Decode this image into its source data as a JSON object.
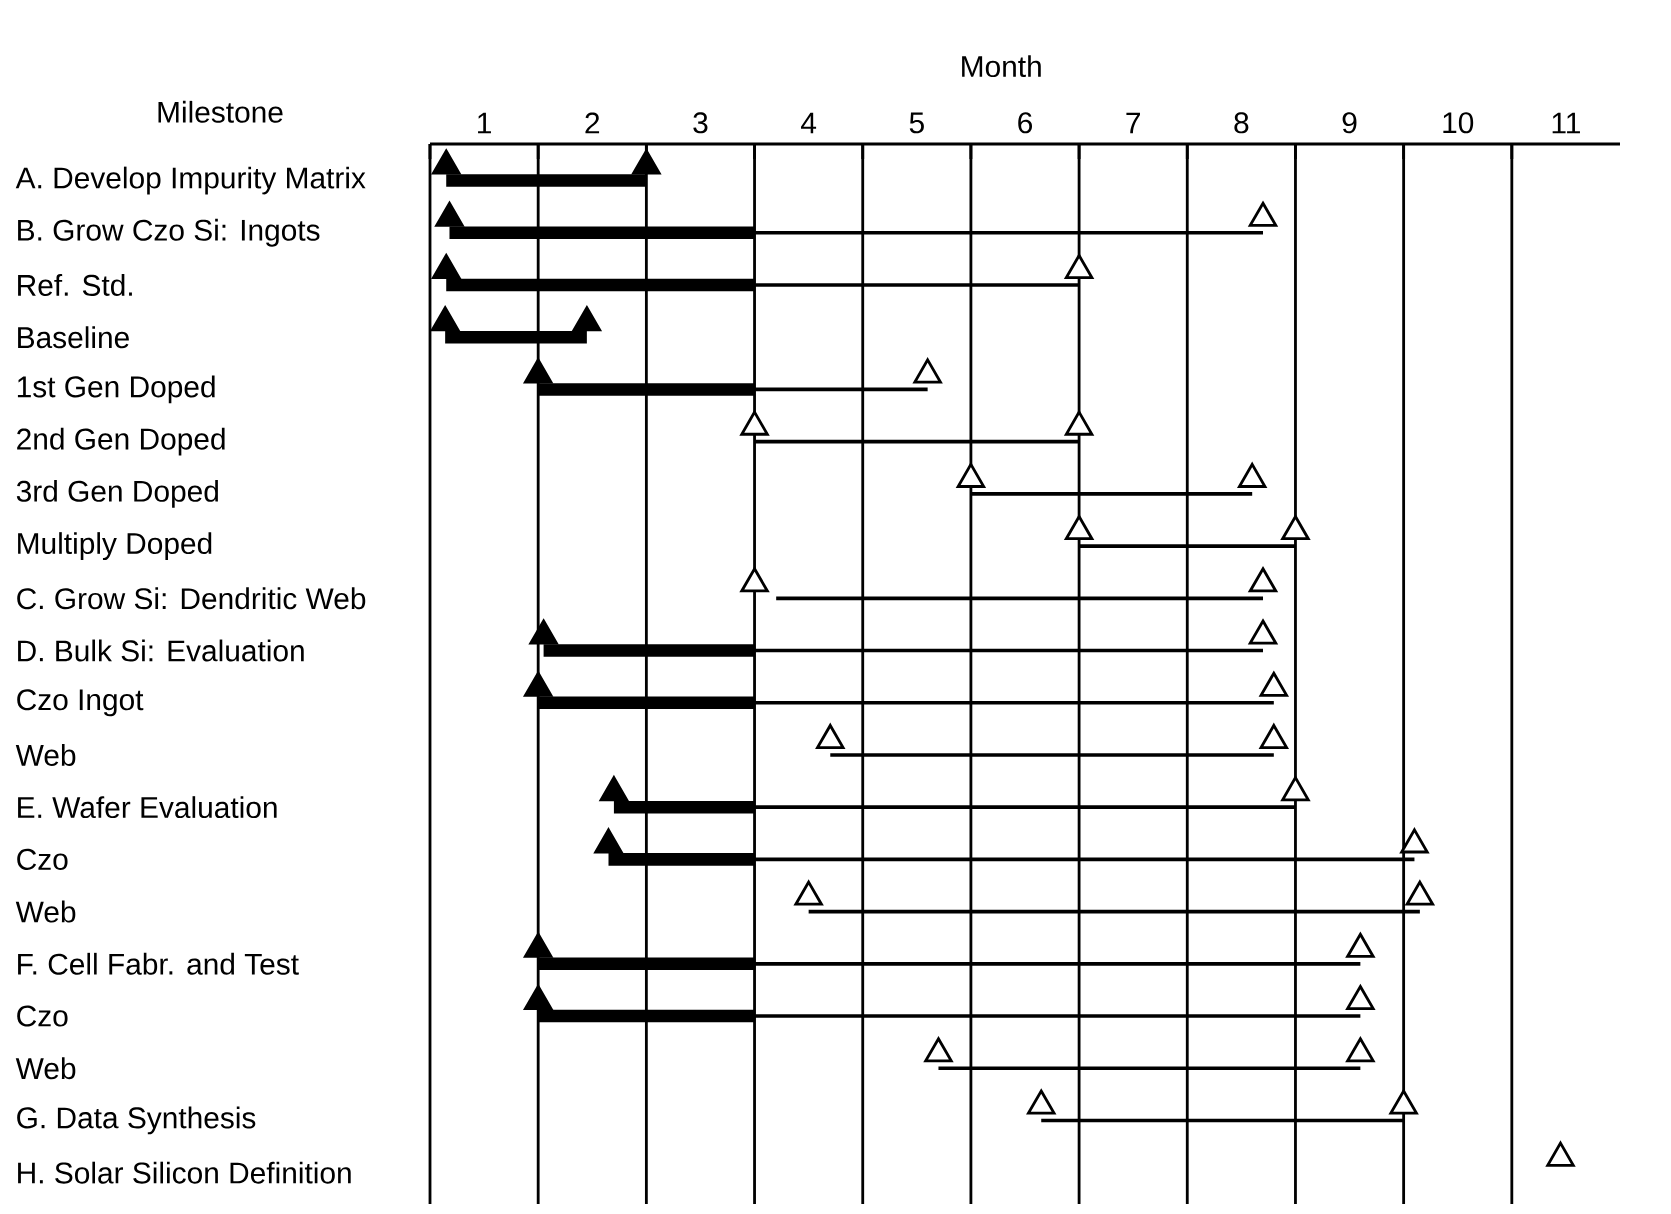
{
  "chart_data": {
    "type": "bar",
    "orientation": "horizontal",
    "xlabel": "Month",
    "ylabel": "Milestone",
    "categories": [
      "A. Develop Impurity Matrix",
      "B. Grow Czo Si: Ingots",
      "Ref. Std.",
      "Baseline",
      "1st Gen Doped",
      "2nd Gen Doped",
      "3rd Gen Doped",
      "Multiply Doped",
      "C. Grow Si: Dendritic Web",
      "D. Bulk Si: Evaluation",
      "Czo Ingot",
      "Web",
      "E. Wafer Evaluation",
      "Czo",
      "Web",
      "F. Cell Fabr. and Test",
      "Czo",
      "Web",
      "G. Data Synthesis",
      "H. Solar Silicon Definition"
    ],
    "series": [
      {
        "color": "#000000",
        "base": [
          0.15,
          0.18,
          0.15,
          0.14,
          1.0,
          null,
          null,
          null,
          null,
          1.05,
          1.0,
          null,
          1.7,
          1.65,
          null,
          1.0,
          1.0,
          null,
          null,
          null
        ],
        "values": [
          1.85,
          2.82,
          2.85,
          1.31,
          2.0,
          null,
          null,
          null,
          null,
          1.95,
          2.0,
          null,
          1.3,
          1.35,
          null,
          2.0,
          2.0,
          null,
          null,
          null
        ]
      },
      {
        "color": "#000000",
        "base": [
          null,
          3.0,
          3.0,
          null,
          3.0,
          3.0,
          5.0,
          6.0,
          3.2,
          3.0,
          3.0,
          3.7,
          3.0,
          3.0,
          3.5,
          3.0,
          3.0,
          4.7,
          5.65,
          null
        ],
        "values": [
          null,
          4.7,
          3.0,
          null,
          1.6,
          3.0,
          2.6,
          2.0,
          4.5,
          4.7,
          4.8,
          4.1,
          5.0,
          6.1,
          5.65,
          5.6,
          5.6,
          3.9,
          3.35,
          null
        ]
      },
      {
        "type": "scatter",
        "marker": "triangle",
        "values": [
          0.15,
          0.18,
          0.15,
          0.14,
          1.0,
          3.0,
          5.0,
          6.0,
          3.0,
          1.05,
          1.0,
          3.7,
          1.7,
          1.65,
          3.5,
          1.0,
          1.0,
          4.7,
          5.65,
          null
        ],
        "colors": [
          "#000000",
          "#000000",
          "#000000",
          "#000000",
          "#000000",
          "#ffffff",
          "#ffffff",
          "#ffffff",
          "#ffffff",
          "#000000",
          "#000000",
          "#ffffff",
          "#000000",
          "#000000",
          "#ffffff",
          "#000000",
          "#000000",
          "#ffffff",
          "#ffffff",
          "#ffffff"
        ]
      },
      {
        "type": "scatter",
        "marker": "triangle",
        "values": [
          2.0,
          7.7,
          6.0,
          1.45,
          4.6,
          6.0,
          7.6,
          8.0,
          7.7,
          7.7,
          7.8,
          7.8,
          8.0,
          9.1,
          9.15,
          8.6,
          8.6,
          8.6,
          9.0,
          10.45
        ],
        "colors": [
          "#000000",
          "#ffffff",
          "#ffffff",
          "#000000",
          "#ffffff",
          "#ffffff",
          "#ffffff",
          "#ffffff",
          "#ffffff",
          "#ffffff",
          "#ffffff",
          "#ffffff",
          "#ffffff",
          "#ffffff",
          "#ffffff",
          "#ffffff",
          "#ffffff",
          "#ffffff",
          "#ffffff",
          "#ffffff"
        ]
      }
    ],
    "xlim": [
      0,
      11
    ],
    "xticks": [
      {
        "value": 0,
        "label": null
      },
      {
        "value": 0.5,
        "label": "1"
      },
      {
        "value": 1,
        "label": null
      },
      {
        "value": 1.5,
        "label": "2"
      },
      {
        "value": 2,
        "label": null
      },
      {
        "value": 2.5,
        "label": "3"
      },
      {
        "value": 3,
        "label": null
      },
      {
        "value": 3.5,
        "label": "4"
      },
      {
        "value": 4,
        "label": null
      },
      {
        "value": 4.5,
        "label": "5"
      },
      {
        "value": 5,
        "label": null
      },
      {
        "value": 5.5,
        "label": "6"
      },
      {
        "value": 6,
        "label": null
      },
      {
        "value": 6.5,
        "label": "7"
      },
      {
        "value": 7,
        "label": null
      },
      {
        "value": 7.5,
        "label": "8"
      },
      {
        "value": 8,
        "label": null
      },
      {
        "value": 8.5,
        "label": "9"
      },
      {
        "value": 9,
        "label": null
      },
      {
        "value": 9.5,
        "label": "10"
      },
      {
        "value": 10,
        "label": null
      },
      {
        "value": 10.5,
        "label": "11"
      }
    ],
    "grid": "x"
  }
}
